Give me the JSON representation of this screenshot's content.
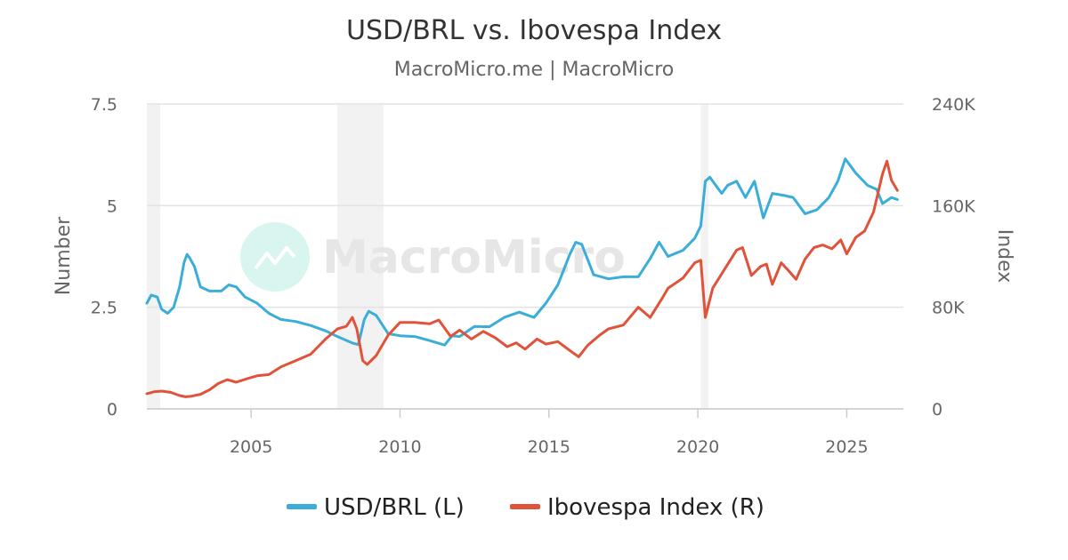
{
  "chart_data": {
    "type": "line",
    "title": "USD/BRL vs. Ibovespa Index",
    "subtitle": "MacroMicro.me | MacroMicro",
    "watermark": "MacroMicro",
    "xaxis": {
      "ticks": [
        "2005",
        "2010",
        "2015",
        "2020",
        "2025"
      ],
      "range": [
        2001.5,
        2026.9
      ]
    },
    "yaxis_left": {
      "title": "Number",
      "range": [
        0,
        7.5
      ],
      "ticks": [
        "0",
        "2.5",
        "5",
        "7.5"
      ]
    },
    "yaxis_right": {
      "title": "Index",
      "range": [
        0,
        240000
      ],
      "ticks": [
        "0",
        "80K",
        "160K",
        "240K"
      ]
    },
    "grid": true,
    "legend_position": "bottom-center",
    "shaded_periods": [
      [
        2001.5,
        2001.95
      ],
      [
        2007.9,
        2009.45
      ],
      [
        2020.1,
        2020.35
      ]
    ],
    "series": [
      {
        "name": "USD/BRL (L)",
        "axis": "left",
        "color": "#3aaed8",
        "points": [
          [
            2001.5,
            2.6
          ],
          [
            2001.65,
            2.8
          ],
          [
            2001.85,
            2.75
          ],
          [
            2002.0,
            2.45
          ],
          [
            2002.2,
            2.35
          ],
          [
            2002.4,
            2.5
          ],
          [
            2002.6,
            3.0
          ],
          [
            2002.75,
            3.6
          ],
          [
            2002.85,
            3.8
          ],
          [
            2002.95,
            3.7
          ],
          [
            2003.1,
            3.5
          ],
          [
            2003.3,
            3.0
          ],
          [
            2003.6,
            2.9
          ],
          [
            2004.0,
            2.9
          ],
          [
            2004.25,
            3.05
          ],
          [
            2004.5,
            3.0
          ],
          [
            2004.8,
            2.75
          ],
          [
            2005.2,
            2.6
          ],
          [
            2005.6,
            2.35
          ],
          [
            2006.0,
            2.2
          ],
          [
            2006.5,
            2.15
          ],
          [
            2007.0,
            2.05
          ],
          [
            2007.5,
            1.92
          ],
          [
            2007.9,
            1.78
          ],
          [
            2008.4,
            1.62
          ],
          [
            2008.6,
            1.58
          ],
          [
            2008.8,
            2.2
          ],
          [
            2008.95,
            2.4
          ],
          [
            2009.2,
            2.3
          ],
          [
            2009.6,
            1.85
          ],
          [
            2010.0,
            1.8
          ],
          [
            2010.5,
            1.78
          ],
          [
            2011.0,
            1.68
          ],
          [
            2011.5,
            1.57
          ],
          [
            2011.75,
            1.8
          ],
          [
            2012.0,
            1.78
          ],
          [
            2012.5,
            2.03
          ],
          [
            2013.0,
            2.02
          ],
          [
            2013.5,
            2.25
          ],
          [
            2014.0,
            2.38
          ],
          [
            2014.5,
            2.25
          ],
          [
            2014.9,
            2.6
          ],
          [
            2015.3,
            3.05
          ],
          [
            2015.7,
            3.8
          ],
          [
            2015.9,
            4.1
          ],
          [
            2016.1,
            4.05
          ],
          [
            2016.5,
            3.3
          ],
          [
            2017.0,
            3.2
          ],
          [
            2017.5,
            3.25
          ],
          [
            2018.0,
            3.25
          ],
          [
            2018.4,
            3.7
          ],
          [
            2018.7,
            4.1
          ],
          [
            2019.0,
            3.75
          ],
          [
            2019.5,
            3.9
          ],
          [
            2019.9,
            4.2
          ],
          [
            2020.1,
            4.5
          ],
          [
            2020.25,
            5.6
          ],
          [
            2020.4,
            5.7
          ],
          [
            2020.8,
            5.3
          ],
          [
            2021.0,
            5.5
          ],
          [
            2021.3,
            5.6
          ],
          [
            2021.6,
            5.2
          ],
          [
            2021.9,
            5.6
          ],
          [
            2022.2,
            4.7
          ],
          [
            2022.5,
            5.3
          ],
          [
            2022.9,
            5.25
          ],
          [
            2023.2,
            5.2
          ],
          [
            2023.6,
            4.8
          ],
          [
            2024.0,
            4.9
          ],
          [
            2024.4,
            5.2
          ],
          [
            2024.7,
            5.6
          ],
          [
            2024.95,
            6.15
          ],
          [
            2025.3,
            5.8
          ],
          [
            2025.7,
            5.5
          ],
          [
            2026.0,
            5.4
          ],
          [
            2026.2,
            5.05
          ],
          [
            2026.5,
            5.2
          ],
          [
            2026.7,
            5.15
          ]
        ]
      },
      {
        "name": "Ibovespa Index (R)",
        "axis": "right",
        "color": "#e0533a",
        "points": [
          [
            2001.5,
            12000
          ],
          [
            2001.75,
            13500
          ],
          [
            2002.0,
            14000
          ],
          [
            2002.3,
            13000
          ],
          [
            2002.6,
            10500
          ],
          [
            2002.8,
            9500
          ],
          [
            2003.0,
            10000
          ],
          [
            2003.3,
            11500
          ],
          [
            2003.6,
            15000
          ],
          [
            2003.9,
            20000
          ],
          [
            2004.2,
            23000
          ],
          [
            2004.5,
            21000
          ],
          [
            2004.9,
            24000
          ],
          [
            2005.2,
            26000
          ],
          [
            2005.6,
            27000
          ],
          [
            2006.0,
            33000
          ],
          [
            2006.5,
            38000
          ],
          [
            2007.0,
            43000
          ],
          [
            2007.5,
            55000
          ],
          [
            2007.9,
            63000
          ],
          [
            2008.2,
            65000
          ],
          [
            2008.4,
            72000
          ],
          [
            2008.55,
            63000
          ],
          [
            2008.75,
            38000
          ],
          [
            2008.9,
            35000
          ],
          [
            2009.2,
            42000
          ],
          [
            2009.6,
            58000
          ],
          [
            2010.0,
            68000
          ],
          [
            2010.5,
            68000
          ],
          [
            2011.0,
            67000
          ],
          [
            2011.3,
            70000
          ],
          [
            2011.7,
            57000
          ],
          [
            2012.0,
            62000
          ],
          [
            2012.4,
            55000
          ],
          [
            2012.8,
            61000
          ],
          [
            2013.2,
            56000
          ],
          [
            2013.6,
            49000
          ],
          [
            2013.9,
            52000
          ],
          [
            2014.2,
            47000
          ],
          [
            2014.6,
            55000
          ],
          [
            2014.9,
            51000
          ],
          [
            2015.3,
            53000
          ],
          [
            2015.7,
            46000
          ],
          [
            2016.0,
            41000
          ],
          [
            2016.3,
            50000
          ],
          [
            2016.7,
            58000
          ],
          [
            2017.0,
            63000
          ],
          [
            2017.5,
            66000
          ],
          [
            2018.0,
            80000
          ],
          [
            2018.4,
            72000
          ],
          [
            2018.8,
            87000
          ],
          [
            2019.0,
            95000
          ],
          [
            2019.5,
            103000
          ],
          [
            2019.9,
            115000
          ],
          [
            2020.1,
            117000
          ],
          [
            2020.25,
            72000
          ],
          [
            2020.5,
            95000
          ],
          [
            2020.9,
            110000
          ],
          [
            2021.3,
            125000
          ],
          [
            2021.5,
            127000
          ],
          [
            2021.8,
            105000
          ],
          [
            2022.1,
            112000
          ],
          [
            2022.3,
            114000
          ],
          [
            2022.5,
            98000
          ],
          [
            2022.8,
            115000
          ],
          [
            2023.0,
            110000
          ],
          [
            2023.3,
            102000
          ],
          [
            2023.6,
            118000
          ],
          [
            2023.9,
            127000
          ],
          [
            2024.2,
            129000
          ],
          [
            2024.5,
            126000
          ],
          [
            2024.8,
            133000
          ],
          [
            2025.0,
            122000
          ],
          [
            2025.3,
            135000
          ],
          [
            2025.6,
            140000
          ],
          [
            2025.9,
            155000
          ],
          [
            2026.2,
            185000
          ],
          [
            2026.35,
            195000
          ],
          [
            2026.5,
            180000
          ],
          [
            2026.7,
            172000
          ]
        ]
      }
    ]
  }
}
